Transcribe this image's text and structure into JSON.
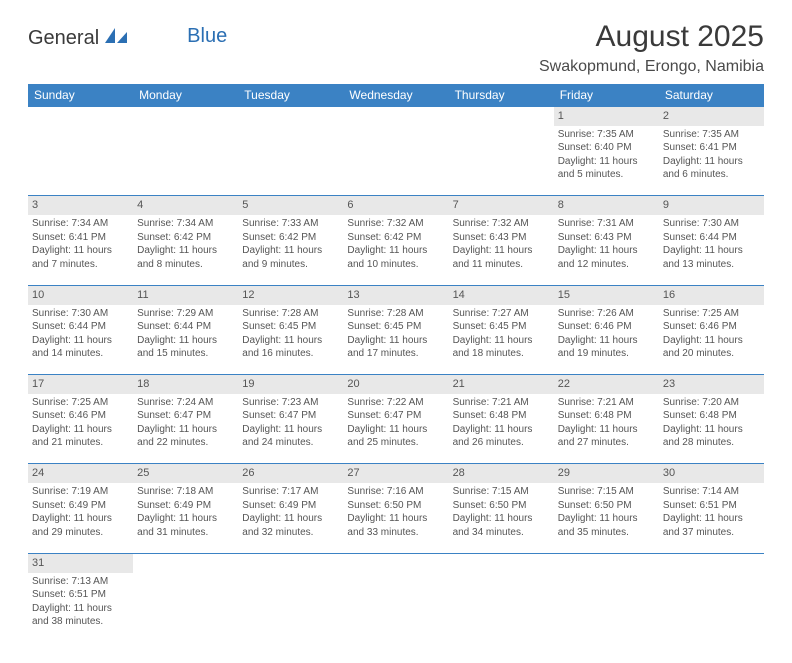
{
  "logo": {
    "part1": "General",
    "part2": "Blue"
  },
  "title": "August 2025",
  "location": "Swakopmund, Erongo, Namibia",
  "colors": {
    "header_bg": "#3b82c4",
    "header_text": "#ffffff",
    "daynum_bg": "#e8e8e8",
    "border": "#3b82c4",
    "text": "#555555",
    "logo_blue": "#2b6fb3"
  },
  "day_labels": [
    "Sunday",
    "Monday",
    "Tuesday",
    "Wednesday",
    "Thursday",
    "Friday",
    "Saturday"
  ],
  "weeks": [
    [
      null,
      null,
      null,
      null,
      null,
      {
        "n": "1",
        "sr": "7:35 AM",
        "ss": "6:40 PM",
        "dl": "11 hours and 5 minutes."
      },
      {
        "n": "2",
        "sr": "7:35 AM",
        "ss": "6:41 PM",
        "dl": "11 hours and 6 minutes."
      }
    ],
    [
      {
        "n": "3",
        "sr": "7:34 AM",
        "ss": "6:41 PM",
        "dl": "11 hours and 7 minutes."
      },
      {
        "n": "4",
        "sr": "7:34 AM",
        "ss": "6:42 PM",
        "dl": "11 hours and 8 minutes."
      },
      {
        "n": "5",
        "sr": "7:33 AM",
        "ss": "6:42 PM",
        "dl": "11 hours and 9 minutes."
      },
      {
        "n": "6",
        "sr": "7:32 AM",
        "ss": "6:42 PM",
        "dl": "11 hours and 10 minutes."
      },
      {
        "n": "7",
        "sr": "7:32 AM",
        "ss": "6:43 PM",
        "dl": "11 hours and 11 minutes."
      },
      {
        "n": "8",
        "sr": "7:31 AM",
        "ss": "6:43 PM",
        "dl": "11 hours and 12 minutes."
      },
      {
        "n": "9",
        "sr": "7:30 AM",
        "ss": "6:44 PM",
        "dl": "11 hours and 13 minutes."
      }
    ],
    [
      {
        "n": "10",
        "sr": "7:30 AM",
        "ss": "6:44 PM",
        "dl": "11 hours and 14 minutes."
      },
      {
        "n": "11",
        "sr": "7:29 AM",
        "ss": "6:44 PM",
        "dl": "11 hours and 15 minutes."
      },
      {
        "n": "12",
        "sr": "7:28 AM",
        "ss": "6:45 PM",
        "dl": "11 hours and 16 minutes."
      },
      {
        "n": "13",
        "sr": "7:28 AM",
        "ss": "6:45 PM",
        "dl": "11 hours and 17 minutes."
      },
      {
        "n": "14",
        "sr": "7:27 AM",
        "ss": "6:45 PM",
        "dl": "11 hours and 18 minutes."
      },
      {
        "n": "15",
        "sr": "7:26 AM",
        "ss": "6:46 PM",
        "dl": "11 hours and 19 minutes."
      },
      {
        "n": "16",
        "sr": "7:25 AM",
        "ss": "6:46 PM",
        "dl": "11 hours and 20 minutes."
      }
    ],
    [
      {
        "n": "17",
        "sr": "7:25 AM",
        "ss": "6:46 PM",
        "dl": "11 hours and 21 minutes."
      },
      {
        "n": "18",
        "sr": "7:24 AM",
        "ss": "6:47 PM",
        "dl": "11 hours and 22 minutes."
      },
      {
        "n": "19",
        "sr": "7:23 AM",
        "ss": "6:47 PM",
        "dl": "11 hours and 24 minutes."
      },
      {
        "n": "20",
        "sr": "7:22 AM",
        "ss": "6:47 PM",
        "dl": "11 hours and 25 minutes."
      },
      {
        "n": "21",
        "sr": "7:21 AM",
        "ss": "6:48 PM",
        "dl": "11 hours and 26 minutes."
      },
      {
        "n": "22",
        "sr": "7:21 AM",
        "ss": "6:48 PM",
        "dl": "11 hours and 27 minutes."
      },
      {
        "n": "23",
        "sr": "7:20 AM",
        "ss": "6:48 PM",
        "dl": "11 hours and 28 minutes."
      }
    ],
    [
      {
        "n": "24",
        "sr": "7:19 AM",
        "ss": "6:49 PM",
        "dl": "11 hours and 29 minutes."
      },
      {
        "n": "25",
        "sr": "7:18 AM",
        "ss": "6:49 PM",
        "dl": "11 hours and 31 minutes."
      },
      {
        "n": "26",
        "sr": "7:17 AM",
        "ss": "6:49 PM",
        "dl": "11 hours and 32 minutes."
      },
      {
        "n": "27",
        "sr": "7:16 AM",
        "ss": "6:50 PM",
        "dl": "11 hours and 33 minutes."
      },
      {
        "n": "28",
        "sr": "7:15 AM",
        "ss": "6:50 PM",
        "dl": "11 hours and 34 minutes."
      },
      {
        "n": "29",
        "sr": "7:15 AM",
        "ss": "6:50 PM",
        "dl": "11 hours and 35 minutes."
      },
      {
        "n": "30",
        "sr": "7:14 AM",
        "ss": "6:51 PM",
        "dl": "11 hours and 37 minutes."
      }
    ],
    [
      {
        "n": "31",
        "sr": "7:13 AM",
        "ss": "6:51 PM",
        "dl": "11 hours and 38 minutes."
      },
      null,
      null,
      null,
      null,
      null,
      null
    ]
  ],
  "labels": {
    "sunrise": "Sunrise:",
    "sunset": "Sunset:",
    "daylight": "Daylight:"
  }
}
